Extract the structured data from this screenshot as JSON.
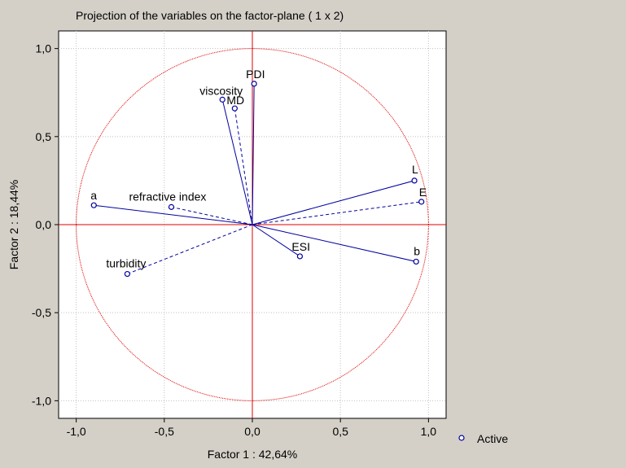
{
  "chart_data": {
    "type": "scatter",
    "title": "Projection of the variables on the factor-plane (  1 x   2)",
    "xlabel": "Factor 1 : 42,64%",
    "ylabel": "Factor 2 : 18,44%",
    "xlim": [
      -1.1,
      1.1
    ],
    "ylim": [
      -1.1,
      1.1
    ],
    "xticks": [
      -1.0,
      -0.5,
      0.0,
      0.5,
      1.0
    ],
    "yticks": [
      -1.0,
      -0.5,
      0.0,
      0.5,
      1.0
    ],
    "xtick_labels": [
      "-1,0",
      "-0,5",
      "0,0",
      "0,5",
      "1,0"
    ],
    "ytick_labels": [
      "-1,0",
      "-0,5",
      "0,0",
      "0,5",
      "1,0"
    ],
    "grid": true,
    "unit_circle": true,
    "legend": {
      "position": "right",
      "entries": [
        "Active"
      ]
    },
    "series": [
      {
        "name": "Active",
        "points": [
          {
            "label": "PDI",
            "x": 0.01,
            "y": 0.8,
            "line": "solid"
          },
          {
            "label": "viscosity",
            "x": -0.17,
            "y": 0.71,
            "line": "solid"
          },
          {
            "label": "MD",
            "x": -0.1,
            "y": 0.66,
            "line": "dashed"
          },
          {
            "label": "L",
            "x": 0.92,
            "y": 0.25,
            "line": "solid"
          },
          {
            "label": "E",
            "x": 0.96,
            "y": 0.13,
            "line": "dashed"
          },
          {
            "label": "a",
            "x": -0.9,
            "y": 0.11,
            "line": "solid"
          },
          {
            "label": "refractive index",
            "x": -0.46,
            "y": 0.1,
            "line": "dashed"
          },
          {
            "label": "ESI",
            "x": 0.27,
            "y": -0.18,
            "line": "solid"
          },
          {
            "label": "b",
            "x": 0.93,
            "y": -0.21,
            "line": "solid"
          },
          {
            "label": "turbidity",
            "x": -0.71,
            "y": -0.28,
            "line": "dashed"
          }
        ]
      }
    ]
  },
  "colors": {
    "background": "#d4d0c8",
    "plot_bg": "#ffffff",
    "vectors": "#0000a0",
    "circle_axes": "#e00000",
    "grid": "#c0c0c0"
  }
}
